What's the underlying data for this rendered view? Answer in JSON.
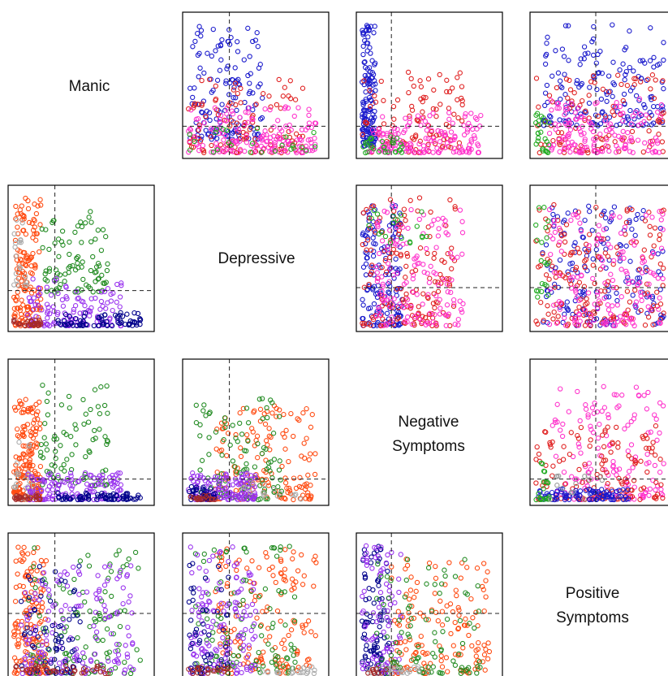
{
  "labels": {
    "manic": "Manic",
    "depressive": "Depressive",
    "negative_line1": "Negative",
    "negative_line2": "Symptoms",
    "positive_line1": "Positive",
    "positive_line2": "Symptoms"
  },
  "chart_data": {
    "type": "scatter",
    "title": "",
    "variables": [
      "Manic",
      "Depressive",
      "Negative Symptoms",
      "Positive Symptoms"
    ],
    "grid": false,
    "reference_lines": "dashed vertical and horizontal line in every panel",
    "upper_triangle_colors": [
      "#1a1acc",
      "#e02020",
      "#ff33cc",
      "#22aa22",
      "#999999"
    ],
    "lower_triangle_colors": [
      "#ff4a10",
      "#228b22",
      "#9933ee",
      "#00008b",
      "#a52a2a",
      "#aaaaaa"
    ],
    "panels": [
      {
        "row": 0,
        "col": 1,
        "lines": {
          "x": 0.32,
          "y": 0.22
        },
        "groups": [
          {
            "color": "#1a1acc",
            "count": 140,
            "x": [
              0.0,
              0.55
            ],
            "y": [
              0.1,
              0.95
            ]
          },
          {
            "color": "#e02020",
            "count": 110,
            "x": [
              0.0,
              0.85
            ],
            "y": [
              0.0,
              0.55
            ]
          },
          {
            "color": "#ff33cc",
            "count": 160,
            "x": [
              0.0,
              0.95
            ],
            "y": [
              0.0,
              0.35
            ]
          },
          {
            "color": "#22aa22",
            "count": 25,
            "x": [
              0.0,
              0.95
            ],
            "y": [
              0.0,
              0.2
            ]
          }
        ]
      },
      {
        "row": 0,
        "col": 2,
        "lines": {
          "x": 0.24,
          "y": 0.22
        },
        "groups": [
          {
            "color": "#1a1acc",
            "count": 140,
            "x": [
              0.0,
              0.1
            ],
            "y": [
              0.05,
              0.95
            ]
          },
          {
            "color": "#e02020",
            "count": 100,
            "x": [
              0.0,
              0.75
            ],
            "y": [
              0.0,
              0.6
            ]
          },
          {
            "color": "#ff33cc",
            "count": 150,
            "x": [
              0.05,
              0.9
            ],
            "y": [
              0.0,
              0.3
            ]
          },
          {
            "color": "#22aa22",
            "count": 30,
            "x": [
              0.0,
              0.3
            ],
            "y": [
              0.0,
              0.12
            ]
          }
        ]
      },
      {
        "row": 0,
        "col": 3,
        "lines": {
          "x": 0.45,
          "y": 0.22
        },
        "groups": [
          {
            "color": "#1a1acc",
            "count": 170,
            "x": [
              0.05,
              0.95
            ],
            "y": [
              0.2,
              0.95
            ]
          },
          {
            "color": "#e02020",
            "count": 100,
            "x": [
              0.0,
              0.95
            ],
            "y": [
              0.0,
              0.6
            ]
          },
          {
            "color": "#ff33cc",
            "count": 140,
            "x": [
              0.1,
              0.95
            ],
            "y": [
              0.0,
              0.4
            ]
          },
          {
            "color": "#22aa22",
            "count": 25,
            "x": [
              0.0,
              0.1
            ],
            "y": [
              0.0,
              0.3
            ]
          }
        ]
      },
      {
        "row": 1,
        "col": 0,
        "lines": {
          "x": 0.32,
          "y": 0.28
        },
        "groups": [
          {
            "color": "#ff4a10",
            "count": 150,
            "x": [
              0.0,
              0.2
            ],
            "y": [
              0.0,
              0.95
            ]
          },
          {
            "color": "#aaaaaa",
            "count": 20,
            "x": [
              0.0,
              0.1
            ],
            "y": [
              0.3,
              0.95
            ]
          },
          {
            "color": "#228b22",
            "count": 90,
            "x": [
              0.2,
              0.7
            ],
            "y": [
              0.25,
              0.85
            ]
          },
          {
            "color": "#9933ee",
            "count": 130,
            "x": [
              0.1,
              0.8
            ],
            "y": [
              0.0,
              0.35
            ]
          },
          {
            "color": "#00008b",
            "count": 70,
            "x": [
              0.3,
              0.95
            ],
            "y": [
              0.0,
              0.1
            ]
          },
          {
            "color": "#a52a2a",
            "count": 30,
            "x": [
              0.0,
              0.2
            ],
            "y": [
              0.0,
              0.05
            ]
          }
        ]
      },
      {
        "row": 1,
        "col": 2,
        "lines": {
          "x": 0.24,
          "y": 0.3
        },
        "groups": [
          {
            "color": "#1a1acc",
            "count": 150,
            "x": [
              0.0,
              0.3
            ],
            "y": [
              0.0,
              0.9
            ]
          },
          {
            "color": "#e02020",
            "count": 150,
            "x": [
              0.0,
              0.7
            ],
            "y": [
              0.0,
              0.95
            ]
          },
          {
            "color": "#ff33cc",
            "count": 140,
            "x": [
              0.1,
              0.75
            ],
            "y": [
              0.0,
              0.9
            ]
          },
          {
            "color": "#22aa22",
            "count": 20,
            "x": [
              0.05,
              0.5
            ],
            "y": [
              0.6,
              0.9
            ]
          }
        ]
      },
      {
        "row": 1,
        "col": 3,
        "lines": {
          "x": 0.45,
          "y": 0.3
        },
        "groups": [
          {
            "color": "#1a1acc",
            "count": 160,
            "x": [
              0.05,
              0.95
            ],
            "y": [
              0.0,
              0.9
            ]
          },
          {
            "color": "#e02020",
            "count": 160,
            "x": [
              0.0,
              0.95
            ],
            "y": [
              0.0,
              0.9
            ]
          },
          {
            "color": "#ff33cc",
            "count": 150,
            "x": [
              0.1,
              0.95
            ],
            "y": [
              0.0,
              0.9
            ]
          },
          {
            "color": "#22aa22",
            "count": 20,
            "x": [
              0.0,
              0.1
            ],
            "y": [
              0.2,
              0.9
            ]
          }
        ]
      },
      {
        "row": 2,
        "col": 0,
        "lines": {
          "x": 0.32,
          "y": 0.18
        },
        "groups": [
          {
            "color": "#ff4a10",
            "count": 170,
            "x": [
              0.0,
              0.2
            ],
            "y": [
              0.0,
              0.75
            ]
          },
          {
            "color": "#aaaaaa",
            "count": 25,
            "x": [
              0.0,
              0.15
            ],
            "y": [
              0.0,
              0.45
            ]
          },
          {
            "color": "#228b22",
            "count": 80,
            "x": [
              0.2,
              0.7
            ],
            "y": [
              0.1,
              0.85
            ]
          },
          {
            "color": "#9933ee",
            "count": 130,
            "x": [
              0.1,
              0.8
            ],
            "y": [
              0.0,
              0.2
            ]
          },
          {
            "color": "#00008b",
            "count": 70,
            "x": [
              0.3,
              0.95
            ],
            "y": [
              0.0,
              0.05
            ]
          },
          {
            "color": "#a52a2a",
            "count": 25,
            "x": [
              0.0,
              0.2
            ],
            "y": [
              0.0,
              0.04
            ]
          }
        ]
      },
      {
        "row": 2,
        "col": 1,
        "lines": {
          "x": 0.32,
          "y": 0.18
        },
        "groups": [
          {
            "color": "#ff4a10",
            "count": 150,
            "x": [
              0.2,
              0.95
            ],
            "y": [
              0.0,
              0.7
            ]
          },
          {
            "color": "#228b22",
            "count": 110,
            "x": [
              0.05,
              0.7
            ],
            "y": [
              0.0,
              0.8
            ]
          },
          {
            "color": "#9933ee",
            "count": 130,
            "x": [
              0.0,
              0.5
            ],
            "y": [
              0.0,
              0.2
            ]
          },
          {
            "color": "#00008b",
            "count": 40,
            "x": [
              0.0,
              0.2
            ],
            "y": [
              0.0,
              0.1
            ]
          },
          {
            "color": "#a52a2a",
            "count": 20,
            "x": [
              0.0,
              0.2
            ],
            "y": [
              0.0,
              0.04
            ]
          },
          {
            "color": "#aaaaaa",
            "count": 15,
            "x": [
              0.4,
              0.9
            ],
            "y": [
              0.0,
              0.12
            ]
          }
        ]
      },
      {
        "row": 2,
        "col": 3,
        "lines": {
          "x": 0.45,
          "y": 0.18
        },
        "groups": [
          {
            "color": "#ff33cc",
            "count": 150,
            "x": [
              0.1,
              0.95
            ],
            "y": [
              0.0,
              0.85
            ]
          },
          {
            "color": "#e02020",
            "count": 130,
            "x": [
              0.0,
              0.95
            ],
            "y": [
              0.0,
              0.55
            ]
          },
          {
            "color": "#1a1acc",
            "count": 90,
            "x": [
              0.0,
              0.7
            ],
            "y": [
              0.0,
              0.08
            ]
          },
          {
            "color": "#22aa22",
            "count": 20,
            "x": [
              0.0,
              0.1
            ],
            "y": [
              0.0,
              0.3
            ]
          },
          {
            "color": "#999999",
            "count": 15,
            "x": [
              0.0,
              0.5
            ],
            "y": [
              0.0,
              0.2
            ]
          }
        ]
      },
      {
        "row": 3,
        "col": 0,
        "lines": {
          "x": 0.32,
          "y": 0.45
        },
        "groups": [
          {
            "color": "#ff4a10",
            "count": 150,
            "x": [
              0.0,
              0.25
            ],
            "y": [
              0.0,
              0.95
            ]
          },
          {
            "color": "#228b22",
            "count": 110,
            "x": [
              0.1,
              0.95
            ],
            "y": [
              0.0,
              0.95
            ]
          },
          {
            "color": "#9933ee",
            "count": 150,
            "x": [
              0.05,
              0.9
            ],
            "y": [
              0.0,
              0.8
            ]
          },
          {
            "color": "#00008b",
            "count": 70,
            "x": [
              0.05,
              0.5
            ],
            "y": [
              0.0,
              0.8
            ]
          },
          {
            "color": "#a52a2a",
            "count": 40,
            "x": [
              0.0,
              0.7
            ],
            "y": [
              0.0,
              0.06
            ]
          }
        ]
      },
      {
        "row": 3,
        "col": 1,
        "lines": {
          "x": 0.32,
          "y": 0.45
        },
        "groups": [
          {
            "color": "#ff4a10",
            "count": 150,
            "x": [
              0.2,
              0.95
            ],
            "y": [
              0.0,
              0.95
            ]
          },
          {
            "color": "#228b22",
            "count": 110,
            "x": [
              0.05,
              0.8
            ],
            "y": [
              0.0,
              0.95
            ]
          },
          {
            "color": "#9933ee",
            "count": 140,
            "x": [
              0.0,
              0.5
            ],
            "y": [
              0.0,
              0.95
            ]
          },
          {
            "color": "#00008b",
            "count": 50,
            "x": [
              0.0,
              0.3
            ],
            "y": [
              0.0,
              0.9
            ]
          },
          {
            "color": "#a52a2a",
            "count": 20,
            "x": [
              0.0,
              0.3
            ],
            "y": [
              0.0,
              0.05
            ]
          },
          {
            "color": "#aaaaaa",
            "count": 20,
            "x": [
              0.55,
              0.95
            ],
            "y": [
              0.0,
              0.05
            ]
          }
        ]
      },
      {
        "row": 3,
        "col": 2,
        "lines": {
          "x": 0.24,
          "y": 0.45
        },
        "groups": [
          {
            "color": "#00008b",
            "count": 90,
            "x": [
              0.0,
              0.2
            ],
            "y": [
              0.0,
              0.95
            ]
          },
          {
            "color": "#9933ee",
            "count": 90,
            "x": [
              0.0,
              0.3
            ],
            "y": [
              0.0,
              0.95
            ]
          },
          {
            "color": "#ff4a10",
            "count": 140,
            "x": [
              0.2,
              0.95
            ],
            "y": [
              0.0,
              0.85
            ]
          },
          {
            "color": "#228b22",
            "count": 90,
            "x": [
              0.1,
              0.9
            ],
            "y": [
              0.0,
              0.85
            ]
          },
          {
            "color": "#aaaaaa",
            "count": 25,
            "x": [
              0.0,
              0.5
            ],
            "y": [
              0.0,
              0.06
            ]
          },
          {
            "color": "#a52a2a",
            "count": 10,
            "x": [
              0.0,
              0.2
            ],
            "y": [
              0.0,
              0.04
            ]
          }
        ]
      }
    ]
  }
}
